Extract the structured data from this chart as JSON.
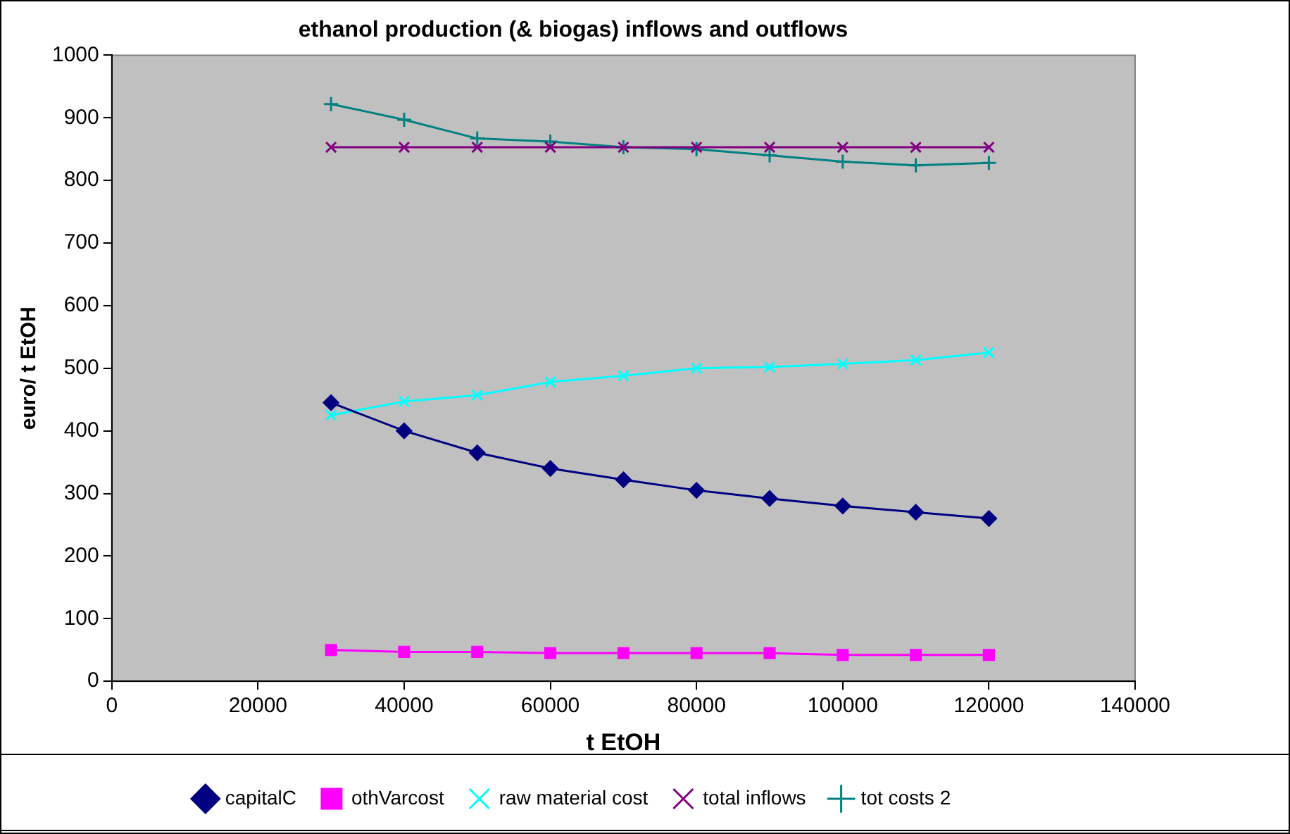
{
  "chart_data": {
    "type": "line",
    "title": "ethanol production (& biogas) inflows and outflows",
    "xlabel": "t EtOH",
    "ylabel": "euro/ t EtOH",
    "x": [
      30000,
      40000,
      50000,
      60000,
      70000,
      80000,
      90000,
      100000,
      110000,
      120000
    ],
    "xlim": [
      0,
      140000
    ],
    "xticks": [
      0,
      20000,
      40000,
      60000,
      80000,
      100000,
      120000,
      140000
    ],
    "ylim": [
      0,
      1000
    ],
    "yticks": [
      0,
      100,
      200,
      300,
      400,
      500,
      600,
      700,
      800,
      900,
      1000
    ],
    "legend": "bottom",
    "series": [
      {
        "name": "capitalC",
        "color": "#000080",
        "marker": "diamond",
        "values": [
          445,
          400,
          365,
          340,
          322,
          305,
          292,
          280,
          270,
          260
        ]
      },
      {
        "name": "othVarcost",
        "color": "#ff00ff",
        "marker": "square",
        "values": [
          50,
          47,
          47,
          45,
          45,
          45,
          45,
          42,
          42,
          42
        ]
      },
      {
        "name": "raw material cost",
        "color": "#00ffff",
        "marker": "cross",
        "values": [
          425,
          447,
          457,
          478,
          488,
          500,
          502,
          507,
          513,
          525
        ]
      },
      {
        "name": "total inflows",
        "color": "#800080",
        "marker": "cross",
        "values": [
          853,
          853,
          853,
          853,
          853,
          853,
          853,
          853,
          853,
          853
        ]
      },
      {
        "name": "tot costs 2",
        "color": "#008080",
        "marker": "plus",
        "values": [
          922,
          897,
          867,
          862,
          853,
          850,
          840,
          830,
          824,
          828
        ]
      }
    ]
  }
}
